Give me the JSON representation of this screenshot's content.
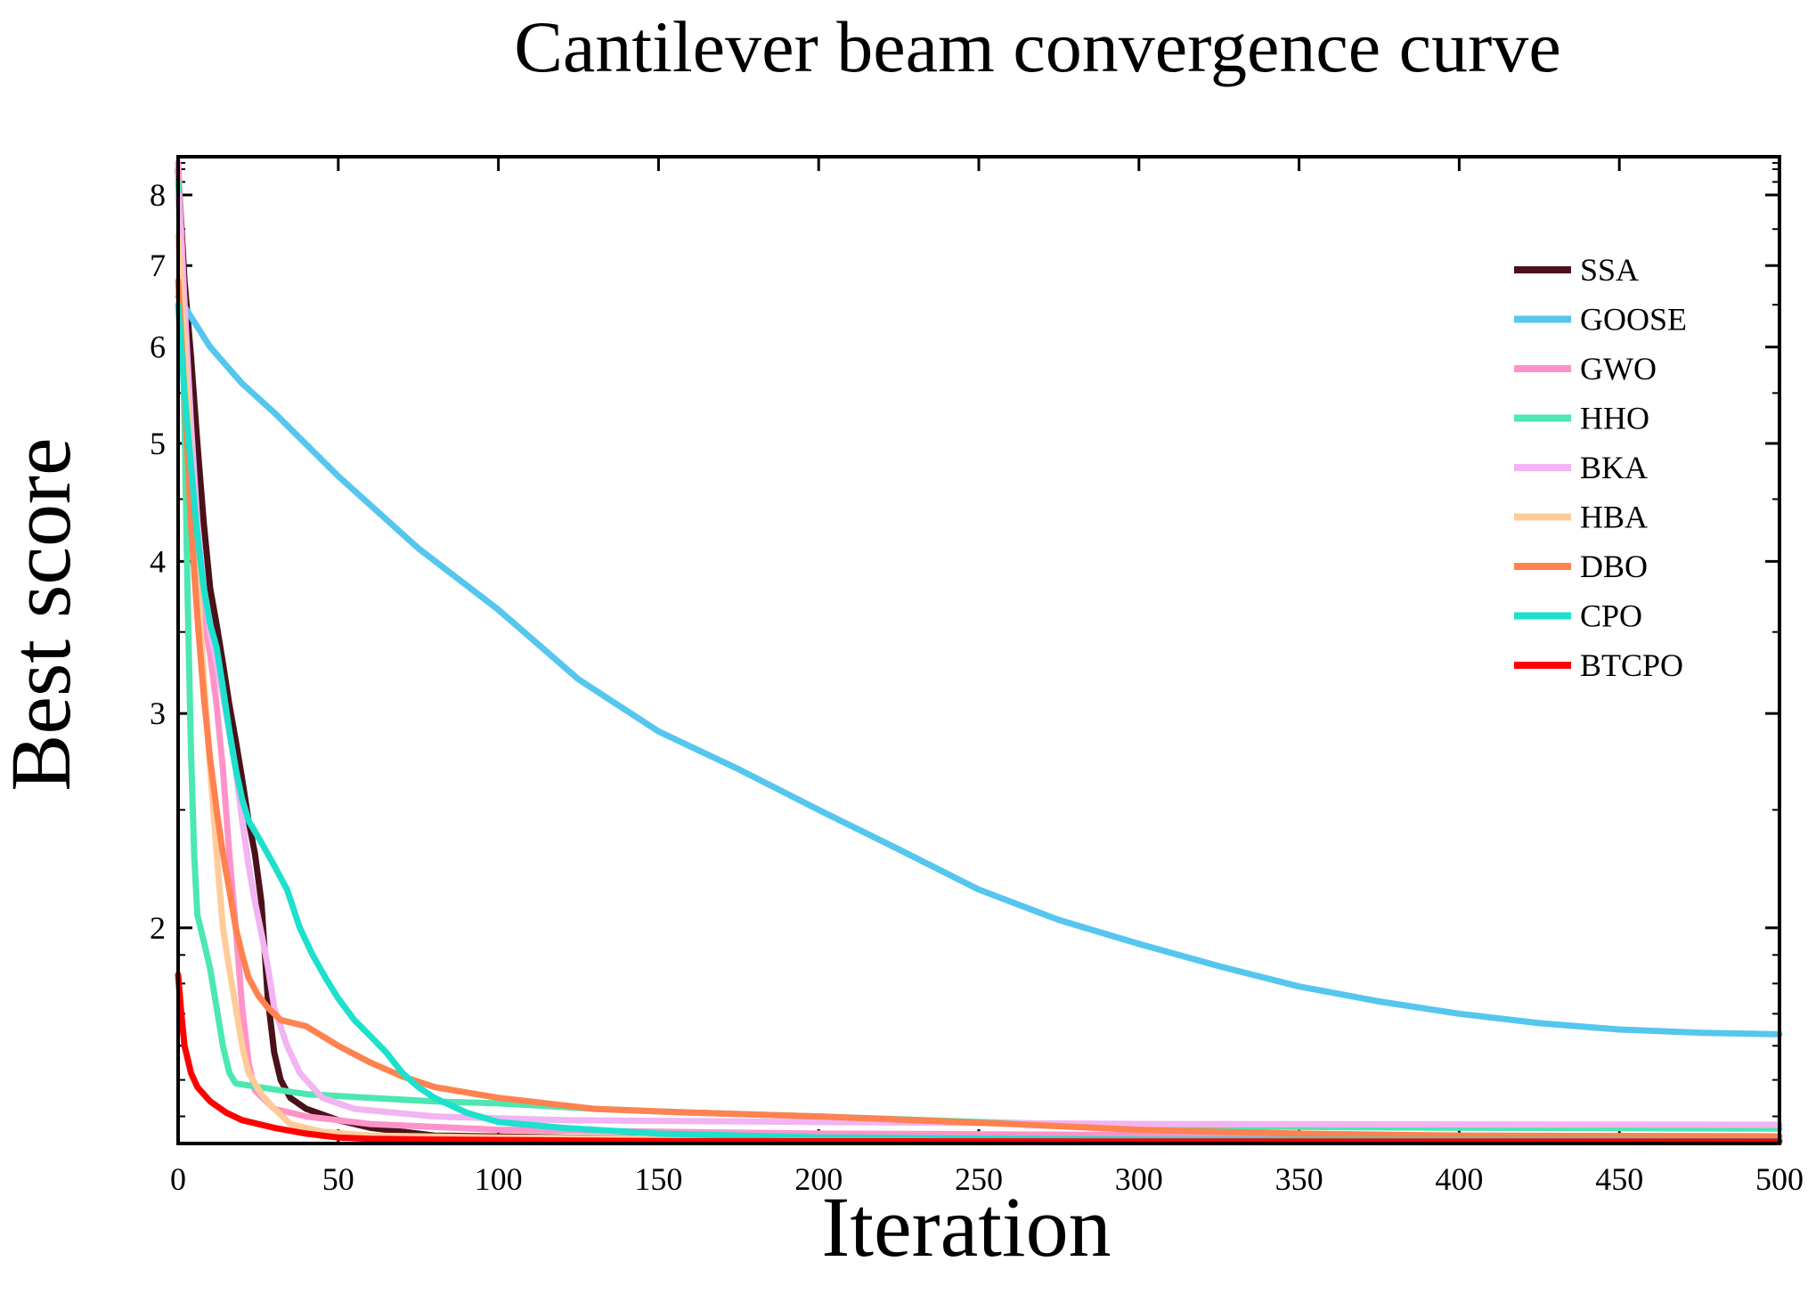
{
  "chart_data": {
    "type": "line",
    "title": "Cantilever beam convergence curve",
    "xlabel": "Iteration",
    "ylabel": "Best score",
    "y_scale": "log",
    "xlim": [
      0,
      500
    ],
    "ylim": [
      1.33,
      8.6
    ],
    "x_ticks": [
      0,
      50,
      100,
      150,
      200,
      250,
      300,
      350,
      400,
      450,
      500
    ],
    "x_tick_labels": [
      "0",
      "50",
      "100",
      "150",
      "200",
      "250",
      "300",
      "350",
      "400",
      "450",
      "500"
    ],
    "y_ticks": [
      2,
      3,
      4,
      5,
      6,
      7,
      8
    ],
    "y_tick_labels": [
      "2",
      "3",
      "4",
      "5",
      "6",
      "7",
      "8"
    ],
    "legend_position": "top-right",
    "series": [
      {
        "name": "SSA",
        "color": "#4a1218",
        "points": [
          [
            0,
            8.4
          ],
          [
            2,
            6.8
          ],
          [
            4,
            5.9
          ],
          [
            6,
            5.0
          ],
          [
            8,
            4.3
          ],
          [
            10,
            3.8
          ],
          [
            12,
            3.55
          ],
          [
            14,
            3.3
          ],
          [
            16,
            3.05
          ],
          [
            18,
            2.85
          ],
          [
            20,
            2.65
          ],
          [
            22,
            2.45
          ],
          [
            24,
            2.3
          ],
          [
            26,
            2.1
          ],
          [
            28,
            1.75
          ],
          [
            30,
            1.58
          ],
          [
            32,
            1.5
          ],
          [
            35,
            1.45
          ],
          [
            40,
            1.42
          ],
          [
            50,
            1.39
          ],
          [
            60,
            1.37
          ],
          [
            80,
            1.35
          ],
          [
            120,
            1.345
          ],
          [
            200,
            1.34
          ],
          [
            350,
            1.338
          ],
          [
            500,
            1.337
          ]
        ]
      },
      {
        "name": "GOOSE",
        "color": "#55c6ee",
        "points": [
          [
            0,
            6.6
          ],
          [
            10,
            6.0
          ],
          [
            20,
            5.6
          ],
          [
            30,
            5.3
          ],
          [
            50,
            4.7
          ],
          [
            75,
            4.1
          ],
          [
            100,
            3.65
          ],
          [
            125,
            3.2
          ],
          [
            150,
            2.9
          ],
          [
            175,
            2.7
          ],
          [
            200,
            2.5
          ],
          [
            225,
            2.32
          ],
          [
            250,
            2.15
          ],
          [
            275,
            2.03
          ],
          [
            300,
            1.94
          ],
          [
            325,
            1.86
          ],
          [
            350,
            1.79
          ],
          [
            375,
            1.74
          ],
          [
            400,
            1.7
          ],
          [
            425,
            1.67
          ],
          [
            450,
            1.65
          ],
          [
            475,
            1.64
          ],
          [
            500,
            1.635
          ]
        ]
      },
      {
        "name": "GWO",
        "color": "#ff93c9",
        "points": [
          [
            0,
            8.5
          ],
          [
            2,
            6.5
          ],
          [
            4,
            5.0
          ],
          [
            6,
            4.1
          ],
          [
            8,
            3.6
          ],
          [
            10,
            3.35
          ],
          [
            12,
            3.05
          ],
          [
            14,
            2.7
          ],
          [
            16,
            2.3
          ],
          [
            18,
            2.0
          ],
          [
            20,
            1.72
          ],
          [
            22,
            1.55
          ],
          [
            24,
            1.47
          ],
          [
            30,
            1.42
          ],
          [
            40,
            1.4
          ],
          [
            60,
            1.38
          ],
          [
            100,
            1.365
          ],
          [
            200,
            1.355
          ],
          [
            350,
            1.35
          ],
          [
            500,
            1.348
          ]
        ]
      },
      {
        "name": "HHO",
        "color": "#4de7b0",
        "points": [
          [
            0,
            8.2
          ],
          [
            1,
            7.0
          ],
          [
            2,
            5.2
          ],
          [
            3,
            3.7
          ],
          [
            4,
            2.8
          ],
          [
            5,
            2.3
          ],
          [
            6,
            2.05
          ],
          [
            8,
            1.95
          ],
          [
            10,
            1.85
          ],
          [
            12,
            1.72
          ],
          [
            14,
            1.6
          ],
          [
            16,
            1.52
          ],
          [
            18,
            1.49
          ],
          [
            25,
            1.48
          ],
          [
            40,
            1.46
          ],
          [
            60,
            1.45
          ],
          [
            80,
            1.44
          ],
          [
            100,
            1.435
          ],
          [
            130,
            1.42
          ],
          [
            160,
            1.41
          ],
          [
            200,
            1.4
          ],
          [
            250,
            1.385
          ],
          [
            300,
            1.375
          ],
          [
            400,
            1.37
          ],
          [
            500,
            1.368
          ]
        ]
      },
      {
        "name": "BKA",
        "color": "#f2b4f2",
        "points": [
          [
            0,
            8.0
          ],
          [
            2,
            6.5
          ],
          [
            4,
            5.2
          ],
          [
            6,
            4.3
          ],
          [
            8,
            3.8
          ],
          [
            10,
            3.5
          ],
          [
            12,
            3.3
          ],
          [
            14,
            3.1
          ],
          [
            16,
            2.9
          ],
          [
            18,
            2.7
          ],
          [
            20,
            2.45
          ],
          [
            22,
            2.25
          ],
          [
            24,
            2.1
          ],
          [
            26,
            1.98
          ],
          [
            28,
            1.86
          ],
          [
            30,
            1.72
          ],
          [
            34,
            1.6
          ],
          [
            38,
            1.52
          ],
          [
            45,
            1.45
          ],
          [
            55,
            1.42
          ],
          [
            80,
            1.4
          ],
          [
            120,
            1.39
          ],
          [
            200,
            1.385
          ],
          [
            300,
            1.38
          ],
          [
            500,
            1.378
          ]
        ]
      },
      {
        "name": "HBA",
        "color": "#ffcc99",
        "points": [
          [
            0,
            7.4
          ],
          [
            2,
            6.0
          ],
          [
            4,
            4.8
          ],
          [
            6,
            3.9
          ],
          [
            8,
            3.2
          ],
          [
            10,
            2.7
          ],
          [
            12,
            2.3
          ],
          [
            14,
            2.0
          ],
          [
            16,
            1.85
          ],
          [
            18,
            1.72
          ],
          [
            20,
            1.6
          ],
          [
            22,
            1.52
          ],
          [
            26,
            1.46
          ],
          [
            30,
            1.42
          ],
          [
            35,
            1.38
          ],
          [
            45,
            1.36
          ],
          [
            60,
            1.35
          ],
          [
            100,
            1.345
          ],
          [
            200,
            1.34
          ],
          [
            500,
            1.338
          ]
        ]
      },
      {
        "name": "DBO",
        "color": "#ff8250",
        "points": [
          [
            0,
            6.8
          ],
          [
            2,
            5.5
          ],
          [
            4,
            4.3
          ],
          [
            6,
            3.6
          ],
          [
            8,
            3.1
          ],
          [
            10,
            2.75
          ],
          [
            12,
            2.5
          ],
          [
            14,
            2.3
          ],
          [
            16,
            2.15
          ],
          [
            18,
            2.0
          ],
          [
            20,
            1.9
          ],
          [
            22,
            1.82
          ],
          [
            25,
            1.76
          ],
          [
            28,
            1.72
          ],
          [
            32,
            1.68
          ],
          [
            40,
            1.66
          ],
          [
            50,
            1.6
          ],
          [
            60,
            1.55
          ],
          [
            70,
            1.51
          ],
          [
            80,
            1.48
          ],
          [
            100,
            1.45
          ],
          [
            130,
            1.42
          ],
          [
            160,
            1.41
          ],
          [
            200,
            1.4
          ],
          [
            230,
            1.39
          ],
          [
            260,
            1.38
          ],
          [
            300,
            1.365
          ],
          [
            350,
            1.355
          ],
          [
            400,
            1.35
          ],
          [
            500,
            1.348
          ]
        ]
      },
      {
        "name": "CPO",
        "color": "#1de0cd",
        "points": [
          [
            0,
            6.5
          ],
          [
            2,
            5.5
          ],
          [
            4,
            4.8
          ],
          [
            6,
            4.2
          ],
          [
            8,
            3.8
          ],
          [
            10,
            3.55
          ],
          [
            12,
            3.4
          ],
          [
            14,
            3.15
          ],
          [
            16,
            2.9
          ],
          [
            18,
            2.7
          ],
          [
            20,
            2.55
          ],
          [
            22,
            2.45
          ],
          [
            26,
            2.35
          ],
          [
            30,
            2.25
          ],
          [
            34,
            2.15
          ],
          [
            38,
            2.0
          ],
          [
            42,
            1.9
          ],
          [
            46,
            1.82
          ],
          [
            50,
            1.75
          ],
          [
            55,
            1.68
          ],
          [
            60,
            1.63
          ],
          [
            65,
            1.58
          ],
          [
            70,
            1.52
          ],
          [
            75,
            1.48
          ],
          [
            80,
            1.45
          ],
          [
            90,
            1.41
          ],
          [
            100,
            1.385
          ],
          [
            120,
            1.37
          ],
          [
            150,
            1.355
          ],
          [
            200,
            1.345
          ],
          [
            300,
            1.34
          ],
          [
            500,
            1.338
          ]
        ]
      },
      {
        "name": "BTCPO",
        "color": "#ff0000",
        "points": [
          [
            0,
            1.83
          ],
          [
            1,
            1.7
          ],
          [
            2,
            1.6
          ],
          [
            4,
            1.52
          ],
          [
            6,
            1.48
          ],
          [
            10,
            1.44
          ],
          [
            15,
            1.41
          ],
          [
            20,
            1.39
          ],
          [
            30,
            1.37
          ],
          [
            40,
            1.355
          ],
          [
            50,
            1.345
          ],
          [
            60,
            1.342
          ],
          [
            80,
            1.34
          ],
          [
            150,
            1.336
          ],
          [
            300,
            1.335
          ],
          [
            500,
            1.335
          ]
        ]
      }
    ]
  }
}
